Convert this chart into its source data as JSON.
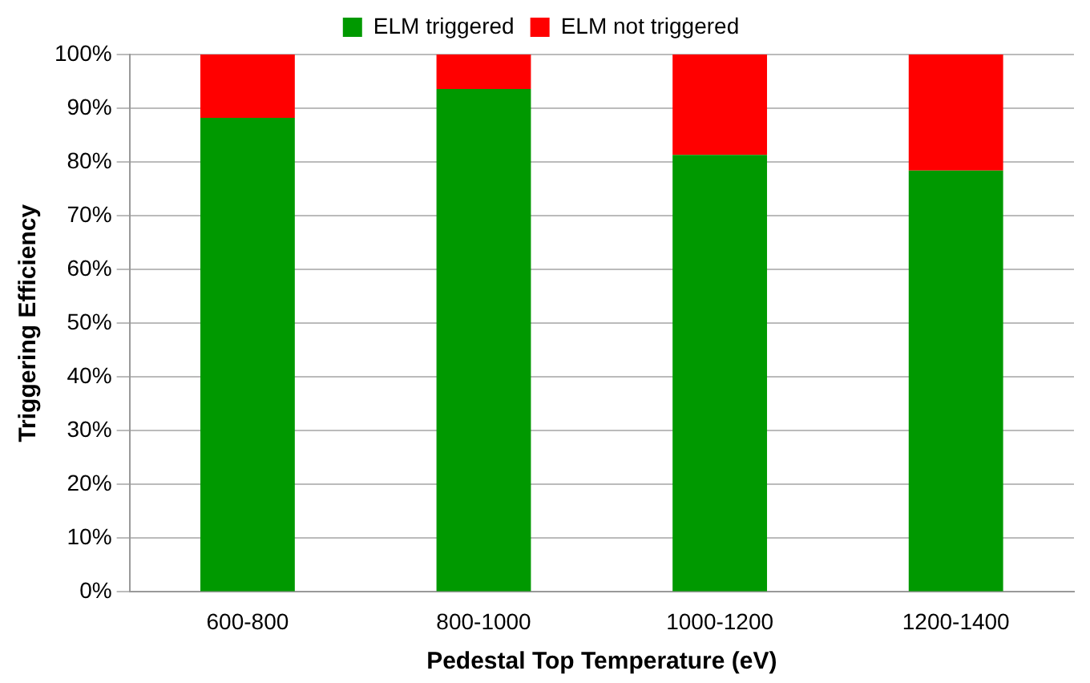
{
  "chart_data": {
    "type": "bar",
    "stacked": true,
    "xlabel": "Pedestal Top Temperature (eV)",
    "ylabel": "Triggering Efficiency",
    "categories": [
      "600-800",
      "800-1000",
      "1000-1200",
      "1200-1400"
    ],
    "series": [
      {
        "name": "ELM triggered",
        "color": "#009900",
        "values": [
          88.2,
          93.6,
          81.3,
          78.4
        ]
      },
      {
        "name": "ELM not triggered",
        "color": "#ff0000",
        "values": [
          11.8,
          6.4,
          18.7,
          21.6
        ]
      }
    ],
    "ylim": [
      0,
      100
    ],
    "yticks": [
      {
        "value": 0,
        "label": "0%"
      },
      {
        "value": 10,
        "label": "10%"
      },
      {
        "value": 20,
        "label": "20%"
      },
      {
        "value": 30,
        "label": "30%"
      },
      {
        "value": 40,
        "label": "40%"
      },
      {
        "value": 50,
        "label": "50%"
      },
      {
        "value": 60,
        "label": "60%"
      },
      {
        "value": 70,
        "label": "70%"
      },
      {
        "value": 80,
        "label": "80%"
      },
      {
        "value": 90,
        "label": "90%"
      },
      {
        "value": 100,
        "label": "100%"
      }
    ],
    "grid": "y",
    "legend": "top"
  }
}
